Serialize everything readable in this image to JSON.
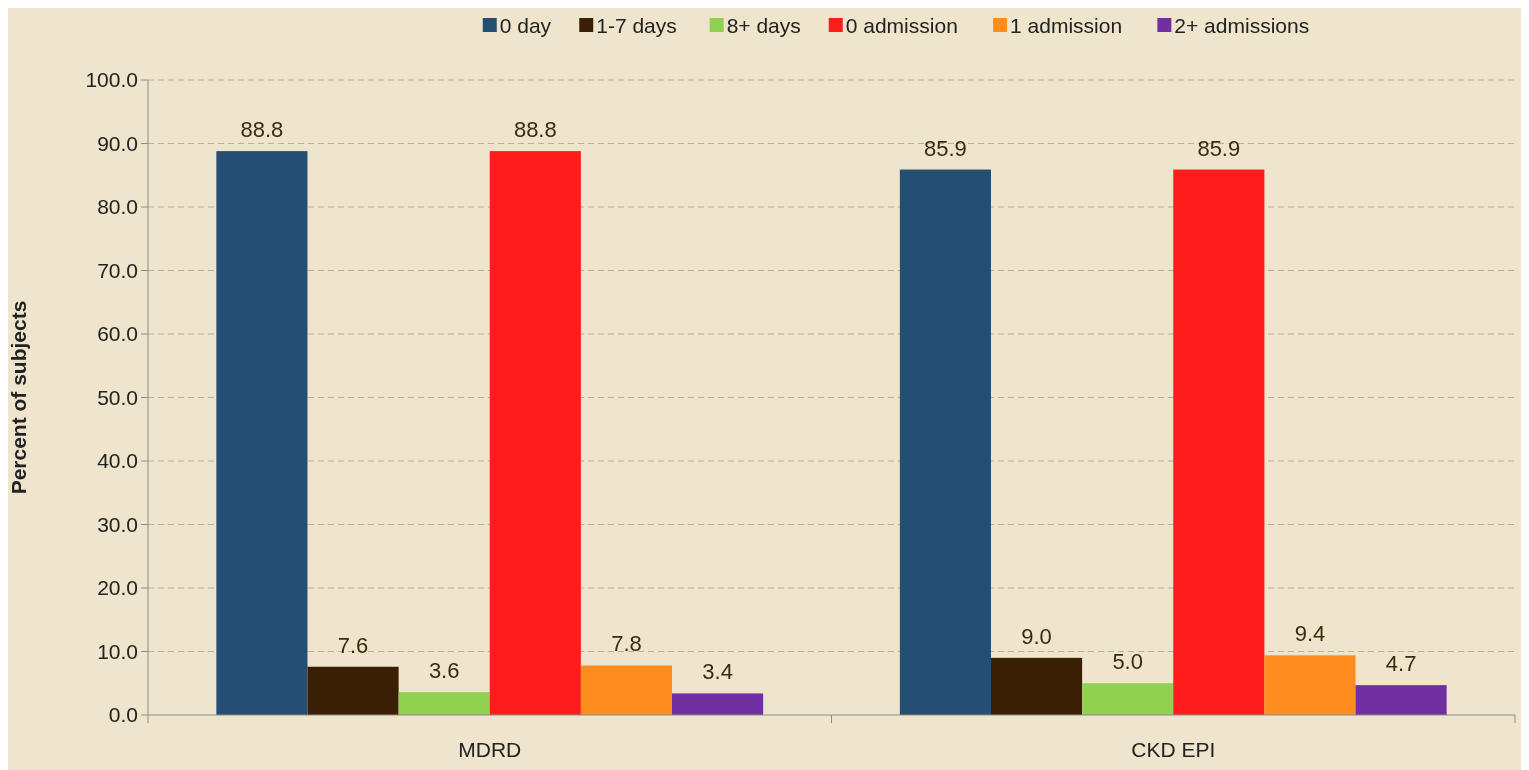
{
  "chart_data": {
    "type": "bar",
    "ylabel": "Percent of subjects",
    "categories": [
      "MDRD",
      "CKD EPI"
    ],
    "series": [
      {
        "name": "0 day",
        "color": "#254e74",
        "values": [
          88.8,
          85.9
        ],
        "value_labels": [
          "88.8",
          "85.9"
        ]
      },
      {
        "name": "1-7 days",
        "color": "#3b1f04",
        "values": [
          7.6,
          9.0
        ],
        "value_labels": [
          "7.6",
          "9.0"
        ]
      },
      {
        "name": "8+ days",
        "color": "#92d050",
        "values": [
          3.6,
          5.0
        ],
        "value_labels": [
          "3.6",
          "5.0"
        ]
      },
      {
        "name": "0 admission",
        "color": "#ff1c1c",
        "values": [
          88.8,
          85.9
        ],
        "value_labels": [
          "88.8",
          "85.9"
        ]
      },
      {
        "name": "1 admission",
        "color": "#ff8c1f",
        "values": [
          7.8,
          9.4
        ],
        "value_labels": [
          "7.8",
          "9.4"
        ]
      },
      {
        "name": "2+ admissions",
        "color": "#7030a0",
        "values": [
          3.4,
          4.7
        ],
        "value_labels": [
          "3.4",
          "4.7"
        ]
      }
    ],
    "ylim": [
      0,
      100
    ],
    "yticks": [
      {
        "value": 0,
        "label": "0.0"
      },
      {
        "value": 10,
        "label": "10.0"
      },
      {
        "value": 20,
        "label": "20.0"
      },
      {
        "value": 30,
        "label": "30.0"
      },
      {
        "value": 40,
        "label": "40.0"
      },
      {
        "value": 50,
        "label": "50.0"
      },
      {
        "value": 60,
        "label": "60.0"
      },
      {
        "value": 70,
        "label": "70.0"
      },
      {
        "value": 80,
        "label": "80.0"
      },
      {
        "value": 90,
        "label": "90.0"
      },
      {
        "value": 100,
        "label": "100.0"
      }
    ],
    "grid": "y",
    "legend": "top"
  }
}
